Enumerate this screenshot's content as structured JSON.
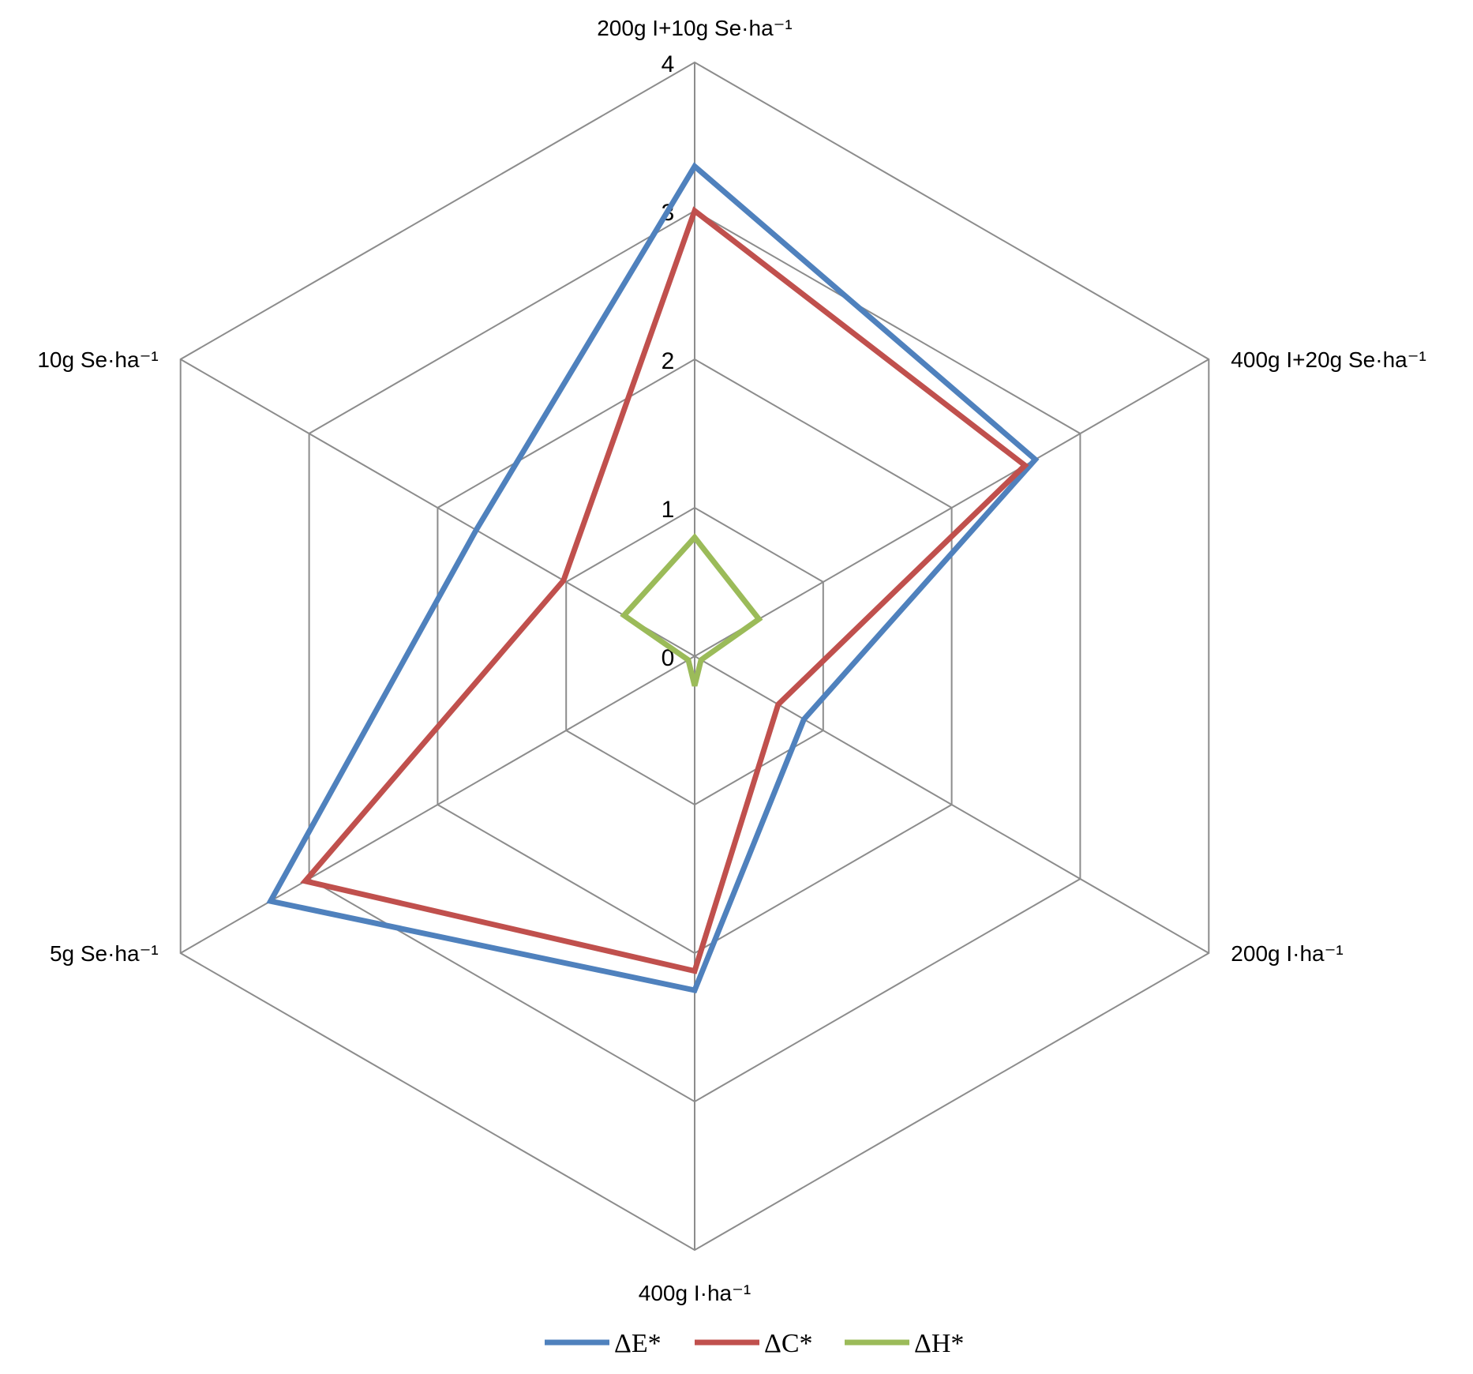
{
  "chart_data": {
    "type": "radar",
    "title": "",
    "categories": [
      "200g I+10g Se·ha⁻¹",
      "400g I+20g Se·ha⁻¹",
      "200g I·ha⁻¹",
      "400g I·ha⁻¹",
      "5g Se·ha⁻¹",
      "10g Se·ha⁻¹"
    ],
    "r_ticks": [
      "0",
      "1",
      "2",
      "3",
      "4"
    ],
    "r_min": 0,
    "r_max": 4,
    "grid": true,
    "legend_position": "bottom",
    "series": [
      {
        "name": "ΔE*",
        "color": "#4F81BD",
        "values": [
          3.3,
          2.65,
          0.85,
          2.25,
          3.3,
          1.7
        ]
      },
      {
        "name": "ΔC*",
        "color": "#C0504D",
        "values": [
          3.0,
          2.57,
          0.65,
          2.12,
          3.03,
          1.02
        ]
      },
      {
        "name": "ΔH*",
        "color": "#9BBB59",
        "values": [
          0.8,
          0.5,
          0.05,
          0.2,
          0.05,
          0.55
        ]
      }
    ]
  }
}
